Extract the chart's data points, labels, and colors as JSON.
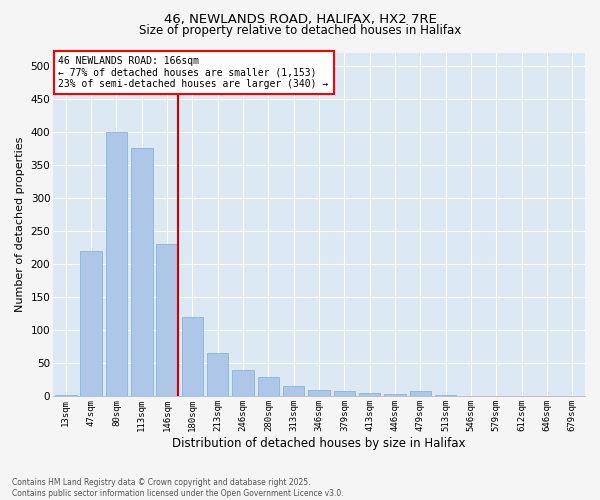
{
  "title_line1": "46, NEWLANDS ROAD, HALIFAX, HX2 7RE",
  "title_line2": "Size of property relative to detached houses in Halifax",
  "xlabel": "Distribution of detached houses by size in Halifax",
  "ylabel": "Number of detached properties",
  "categories": [
    "13sqm",
    "47sqm",
    "80sqm",
    "113sqm",
    "146sqm",
    "180sqm",
    "213sqm",
    "246sqm",
    "280sqm",
    "313sqm",
    "346sqm",
    "379sqm",
    "413sqm",
    "446sqm",
    "479sqm",
    "513sqm",
    "546sqm",
    "579sqm",
    "612sqm",
    "646sqm",
    "679sqm"
  ],
  "values": [
    2,
    220,
    400,
    375,
    230,
    120,
    65,
    40,
    30,
    15,
    10,
    8,
    5,
    3,
    8,
    2,
    1,
    1,
    1,
    1,
    1
  ],
  "bar_color": "#aec6e8",
  "bar_edge_color": "#7aafd4",
  "highlight_index": 4,
  "highlight_color": "#cc0000",
  "ylim": [
    0,
    520
  ],
  "yticks": [
    0,
    50,
    100,
    150,
    200,
    250,
    300,
    350,
    400,
    450,
    500
  ],
  "background_color": "#dce9f5",
  "grid_color": "#ffffff",
  "annotation_text": "46 NEWLANDS ROAD: 166sqm\n← 77% of detached houses are smaller (1,153)\n23% of semi-detached houses are larger (340) →",
  "footer_line1": "Contains HM Land Registry data © Crown copyright and database right 2025.",
  "footer_line2": "Contains public sector information licensed under the Open Government Licence v3.0."
}
